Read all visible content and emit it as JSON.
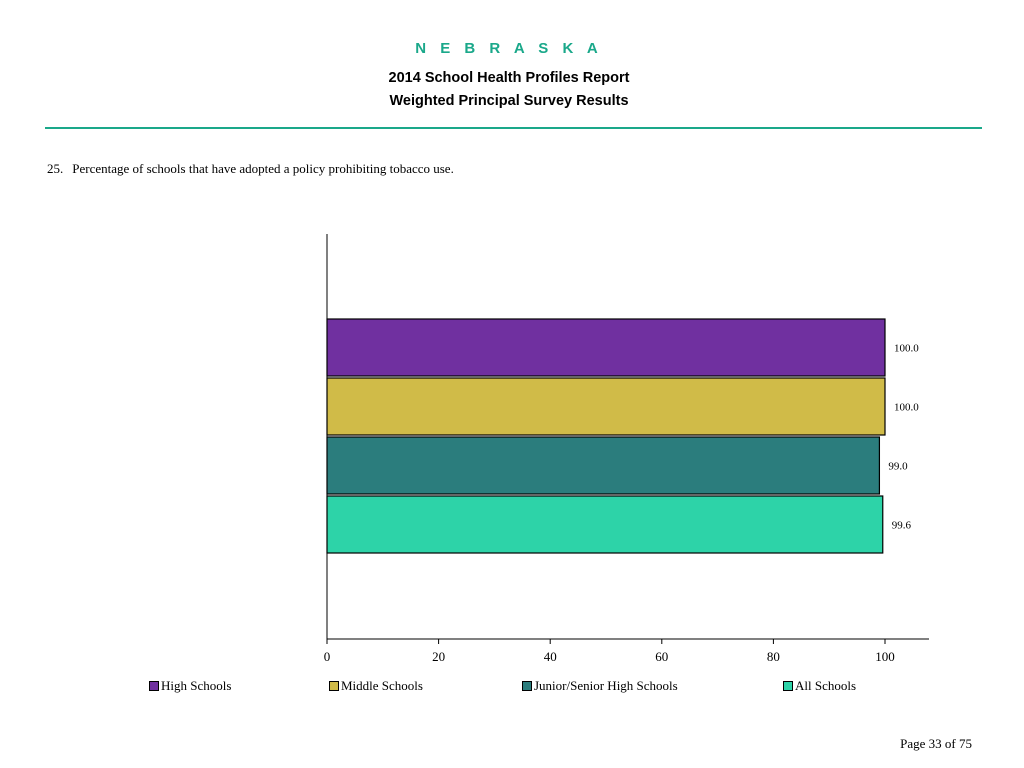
{
  "header": {
    "state": "N E B R A S K A",
    "title": "2014 School Health Profiles Report",
    "subtitle": "Weighted Principal Survey Results"
  },
  "question": {
    "number": "25.",
    "text": "Percentage of schools that have adopted a policy prohibiting tobacco use."
  },
  "chart_data": {
    "type": "bar",
    "orientation": "horizontal",
    "title": "",
    "xlabel": "",
    "ylabel": "",
    "xlim": [
      0,
      100
    ],
    "x_ticks": [
      0,
      20,
      40,
      60,
      80,
      100
    ],
    "grid": false,
    "legend_position": "bottom",
    "series": [
      {
        "name": "High Schools",
        "value": 100.0,
        "label": "100.0",
        "color": "#7030a0"
      },
      {
        "name": "Middle Schools",
        "value": 100.0,
        "label": "100.0",
        "color": "#d0bb48"
      },
      {
        "name": "Junior/Senior High Schools",
        "value": 99.0,
        "label": "99.0",
        "color": "#2b7d7d"
      },
      {
        "name": "All Schools",
        "value": 99.6,
        "label": "99.6",
        "color": "#2dd3a8"
      }
    ]
  },
  "footer": {
    "page": "Page 33 of 75"
  }
}
